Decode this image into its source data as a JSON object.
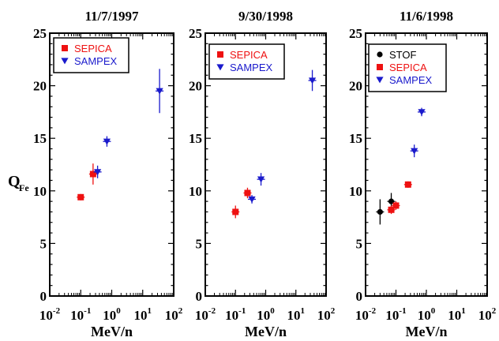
{
  "figure": {
    "ylabel": "Q",
    "ylabel_sub": "Fe",
    "xlabel": "MeV/n"
  },
  "series_colors": {
    "STOF": "#000000",
    "SEPICA": "#ee1111",
    "SAMPEX": "#1a1acc"
  },
  "series_markers": {
    "STOF": "circle",
    "SEPICA": "square",
    "SAMPEX": "triangle-down"
  },
  "chart_data": [
    {
      "type": "scatter",
      "title": "11/7/1997",
      "xlabel": "MeV/n",
      "ylabel": "Q Fe",
      "x_scale": "log",
      "xlim": [
        0.01,
        100
      ],
      "ylim": [
        0,
        25
      ],
      "x_ticks": [
        "10-2",
        "10-1",
        "100",
        "101",
        "102"
      ],
      "y_ticks": [
        "0",
        "5",
        "10",
        "15",
        "20",
        "25"
      ],
      "legend_position": "top-left",
      "legend": [
        "SEPICA",
        "SAMPEX"
      ],
      "series": [
        {
          "name": "SEPICA",
          "points": [
            {
              "x": 0.1,
              "y": 9.4,
              "yerr": 0.3
            },
            {
              "x": 0.25,
              "y": 11.6,
              "yerr": 1.0
            }
          ]
        },
        {
          "name": "SAMPEX",
          "points": [
            {
              "x": 0.35,
              "y": 11.8,
              "yerr": 0.6
            },
            {
              "x": 0.7,
              "y": 14.7,
              "yerr": 0.5
            },
            {
              "x": 35,
              "y": 19.5,
              "yerr": 2.1
            }
          ]
        }
      ]
    },
    {
      "type": "scatter",
      "title": "9/30/1998",
      "xlabel": "MeV/n",
      "x_scale": "log",
      "xlim": [
        0.01,
        100
      ],
      "ylim": [
        0,
        25
      ],
      "x_ticks": [
        "10-2",
        "10-1",
        "100",
        "101",
        "102"
      ],
      "y_ticks": [
        "0",
        "5",
        "10",
        "15",
        "20",
        "25"
      ],
      "legend_position": "top-left",
      "legend": [
        "SEPICA",
        "SAMPEX"
      ],
      "series": [
        {
          "name": "SEPICA",
          "points": [
            {
              "x": 0.1,
              "y": 8.0,
              "yerr": 0.6
            },
            {
              "x": 0.25,
              "y": 9.8,
              "yerr": 0.5
            }
          ]
        },
        {
          "name": "SAMPEX",
          "points": [
            {
              "x": 0.35,
              "y": 9.2,
              "yerr": 0.4
            },
            {
              "x": 0.7,
              "y": 11.1,
              "yerr": 0.6
            },
            {
              "x": 35,
              "y": 20.5,
              "yerr": 1.0
            }
          ]
        }
      ]
    },
    {
      "type": "scatter",
      "title": "11/6/1998",
      "xlabel": "MeV/n",
      "x_scale": "log",
      "xlim": [
        0.01,
        100
      ],
      "ylim": [
        0,
        25
      ],
      "x_ticks": [
        "10-2",
        "10-1",
        "100",
        "101",
        "102"
      ],
      "y_ticks": [
        "0",
        "5",
        "10",
        "15",
        "20",
        "25"
      ],
      "legend_position": "top-left",
      "legend": [
        "STOF",
        "SEPICA",
        "SAMPEX"
      ],
      "series": [
        {
          "name": "STOF",
          "points": [
            {
              "x": 0.03,
              "y": 8.0,
              "yerr": 1.2
            },
            {
              "x": 0.07,
              "y": 9.0,
              "yerr": 0.8
            }
          ]
        },
        {
          "name": "SEPICA",
          "points": [
            {
              "x": 0.07,
              "y": 8.2,
              "yerr": 0.4
            },
            {
              "x": 0.1,
              "y": 8.6,
              "yerr": 0.4
            },
            {
              "x": 0.25,
              "y": 10.6,
              "yerr": 0.3
            }
          ]
        },
        {
          "name": "SAMPEX",
          "points": [
            {
              "x": 0.4,
              "y": 13.8,
              "yerr": 0.6
            },
            {
              "x": 0.7,
              "y": 17.5,
              "yerr": 0.4
            }
          ]
        }
      ]
    }
  ]
}
